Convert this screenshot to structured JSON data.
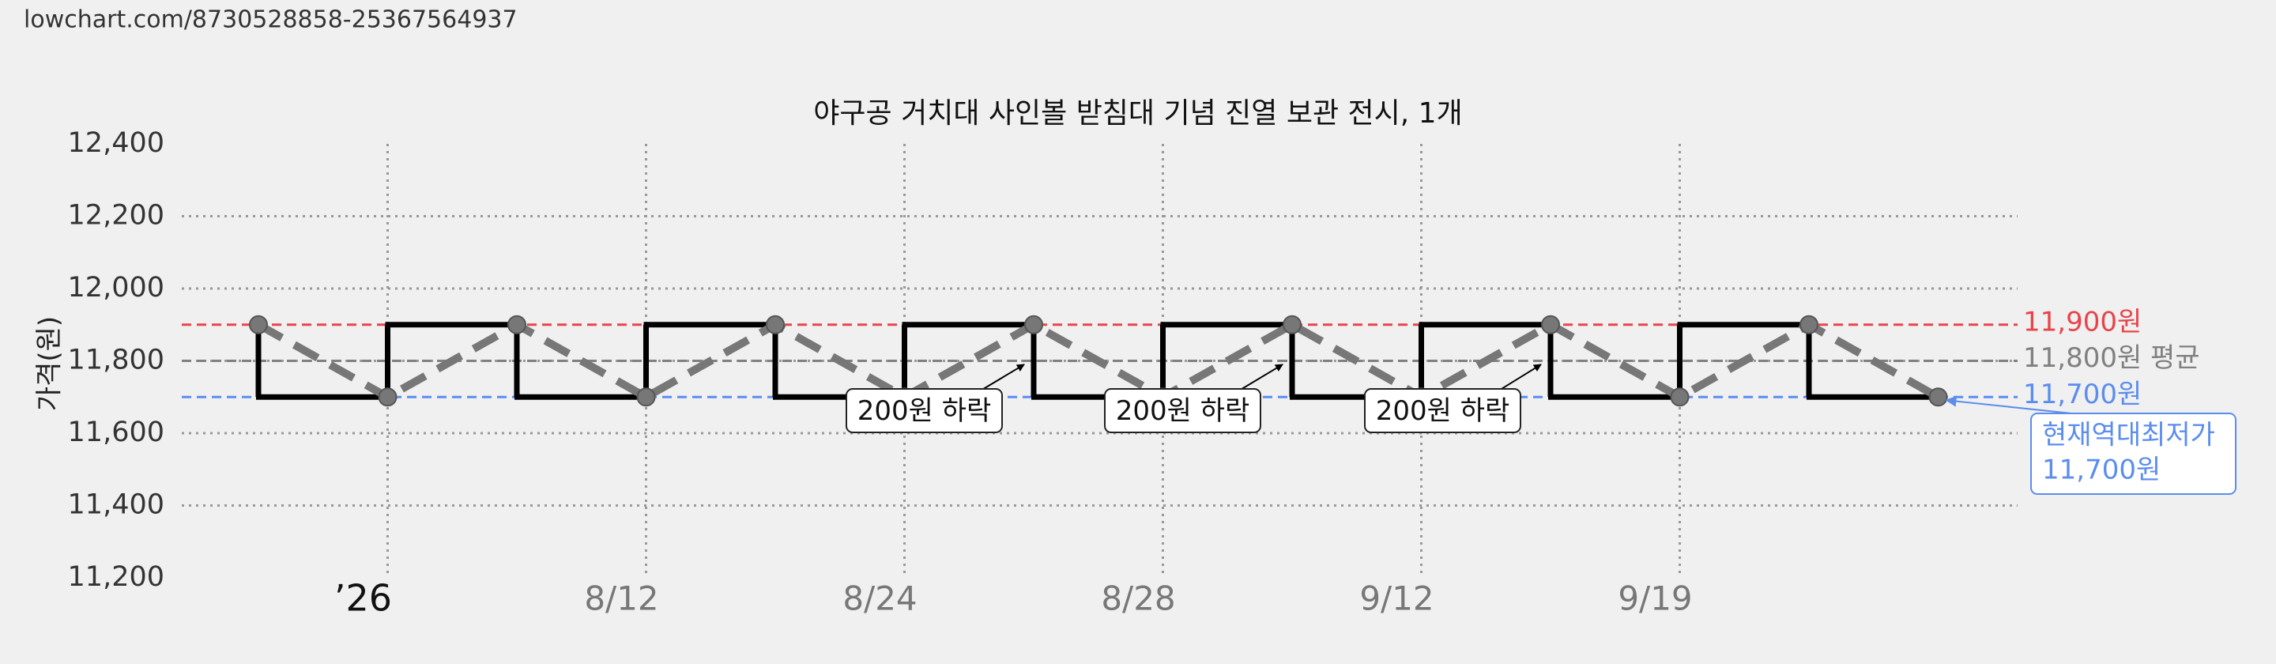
{
  "page": {
    "url": "lowchart.com/8730528858-25367564937"
  },
  "chart_data": {
    "type": "line",
    "title": "야구공 거치대 사인볼 받침대 기념 진열 보관 전시, 1개",
    "y_label": "가격(원)",
    "categories": [
      null,
      "’26",
      null,
      "8/12",
      null,
      "8/24",
      null,
      "8/28",
      null,
      "9/12",
      null,
      "9/19",
      null,
      null
    ],
    "values": [
      11900,
      11700,
      11900,
      11700,
      11900,
      11700,
      11900,
      11700,
      11900,
      11700,
      11900,
      11700,
      11900,
      11700
    ],
    "color": "#777777",
    "step_color": "#000000",
    "ylim": [
      11200,
      12400
    ],
    "yticks": [
      {
        "value": 11200,
        "label": "11,200"
      },
      {
        "value": 11400,
        "label": "11,400"
      },
      {
        "value": 11600,
        "label": "11,600"
      },
      {
        "value": 11800,
        "label": "11,800"
      },
      {
        "value": 12000,
        "label": "12,000"
      },
      {
        "value": 12200,
        "label": "12,200"
      },
      {
        "value": 12400,
        "label": "12,400"
      }
    ],
    "grid": true,
    "reference_lines": [
      {
        "value": 11900,
        "label": "11,900원",
        "color": "#e8444a"
      },
      {
        "value": 11800,
        "label": "11,800원 평균",
        "color": "#808080"
      },
      {
        "value": 11700,
        "label": "11,700원",
        "color": "#5b8def"
      }
    ],
    "annotations": [
      {
        "text": "200원 하락"
      },
      {
        "text": "200원 하락"
      },
      {
        "text": "200원 하락"
      }
    ],
    "current_low": {
      "label": "현재역대최저가",
      "value": 11700,
      "value_label": "11,700원"
    }
  }
}
